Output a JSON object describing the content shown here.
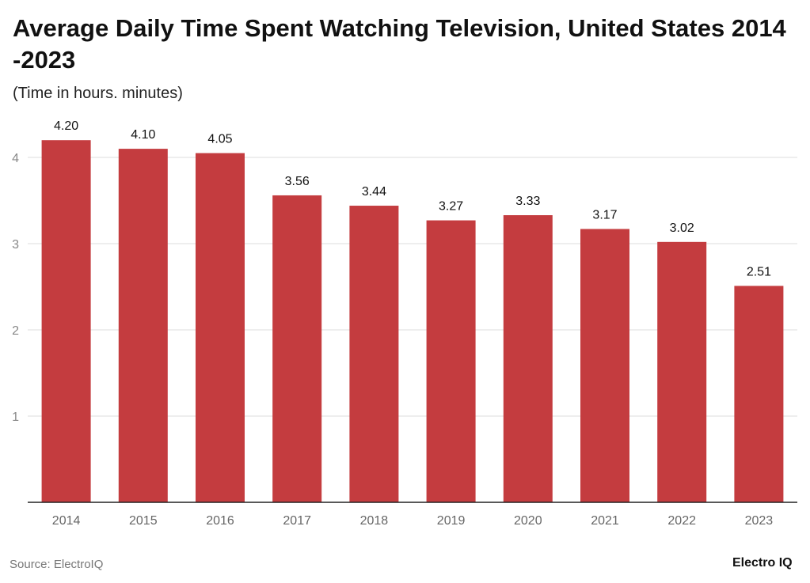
{
  "chart_data": {
    "type": "bar",
    "title": "Average Daily Time Spent Watching Television, United States 2014 -2023",
    "subtitle": "(Time in hours. minutes)",
    "categories": [
      "2014",
      "2015",
      "2016",
      "2017",
      "2018",
      "2019",
      "2020",
      "2021",
      "2022",
      "2023"
    ],
    "values": [
      4.2,
      4.1,
      4.05,
      3.56,
      3.44,
      3.27,
      3.33,
      3.17,
      3.02,
      2.51
    ],
    "value_labels": [
      "4.20",
      "4.10",
      "4.05",
      "3.56",
      "3.44",
      "3.27",
      "3.33",
      "3.17",
      "3.02",
      "2.51"
    ],
    "yticks": [
      1,
      2,
      3,
      4
    ],
    "ylim": [
      0,
      4.4
    ],
    "grid": true,
    "bar_color": "#c43c3f"
  },
  "footer": {
    "source": "Source: ElectroIQ",
    "logo": "Electro IQ"
  }
}
